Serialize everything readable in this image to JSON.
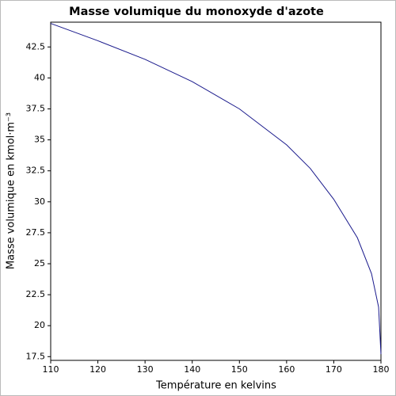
{
  "chart_data": {
    "type": "line",
    "title": "Masse volumique du monoxyde d'azote",
    "x_label": "Température en kelvins",
    "y_label": "Masse volumique en kmol·m⁻³",
    "x": [
      110,
      120,
      130,
      140,
      150,
      160,
      165,
      170,
      175,
      178,
      179.5,
      180
    ],
    "series": [
      {
        "color": "#1a1a8c",
        "values": [
          44.4,
          43.0,
          41.5,
          39.7,
          37.5,
          34.6,
          32.7,
          30.2,
          27.1,
          24.2,
          21.5,
          17.7
        ]
      }
    ],
    "xlim": [
      110,
      180
    ],
    "ylim": [
      17.2,
      44.5
    ],
    "xticks": [
      110,
      120,
      130,
      140,
      150,
      160,
      170,
      180
    ],
    "yticks": [
      17.5,
      20,
      22.5,
      25,
      27.5,
      30,
      32.5,
      35,
      37.5,
      40,
      42.5
    ]
  }
}
